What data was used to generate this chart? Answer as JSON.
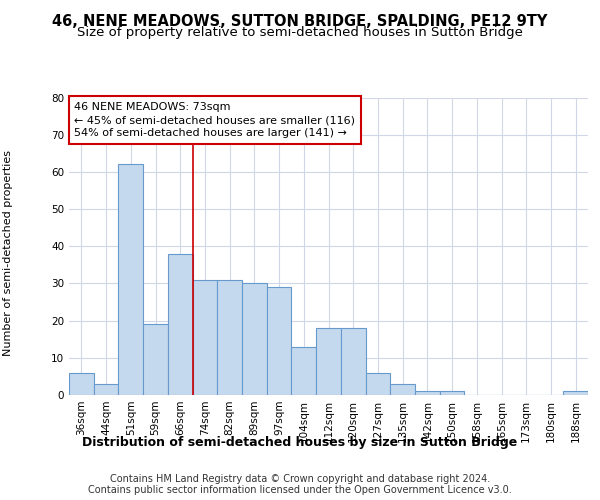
{
  "title": "46, NENE MEADOWS, SUTTON BRIDGE, SPALDING, PE12 9TY",
  "subtitle": "Size of property relative to semi-detached houses in Sutton Bridge",
  "xlabel": "Distribution of semi-detached houses by size in Sutton Bridge",
  "ylabel": "Number of semi-detached properties",
  "categories": [
    "36sqm",
    "44sqm",
    "51sqm",
    "59sqm",
    "66sqm",
    "74sqm",
    "82sqm",
    "89sqm",
    "97sqm",
    "104sqm",
    "112sqm",
    "120sqm",
    "127sqm",
    "135sqm",
    "142sqm",
    "150sqm",
    "158sqm",
    "165sqm",
    "173sqm",
    "180sqm",
    "188sqm"
  ],
  "values": [
    6,
    3,
    62,
    19,
    38,
    31,
    31,
    30,
    29,
    13,
    18,
    18,
    6,
    3,
    1,
    1,
    0,
    0,
    0,
    0,
    1
  ],
  "bar_color": "#c5d9ee",
  "bar_edge_color": "#6699cc",
  "annotation_text": "46 NENE MEADOWS: 73sqm\n← 45% of semi-detached houses are smaller (116)\n54% of semi-detached houses are larger (141) →",
  "annotation_box_color": "#ffffff",
  "annotation_box_edge": "#cc0000",
  "vline_color": "#cc0000",
  "vline_x": 5,
  "ylim": [
    0,
    80
  ],
  "yticks": [
    0,
    10,
    20,
    30,
    40,
    50,
    60,
    70,
    80
  ],
  "grid_color": "#d0d8e8",
  "background_color": "#ffffff",
  "plot_background": "#ffffff",
  "footer_line1": "Contains HM Land Registry data © Crown copyright and database right 2024.",
  "footer_line2": "Contains public sector information licensed under the Open Government Licence v3.0.",
  "title_fontsize": 10.5,
  "subtitle_fontsize": 9.5,
  "xlabel_fontsize": 9,
  "ylabel_fontsize": 8,
  "tick_fontsize": 7.5,
  "footer_fontsize": 7,
  "annot_fontsize": 8
}
